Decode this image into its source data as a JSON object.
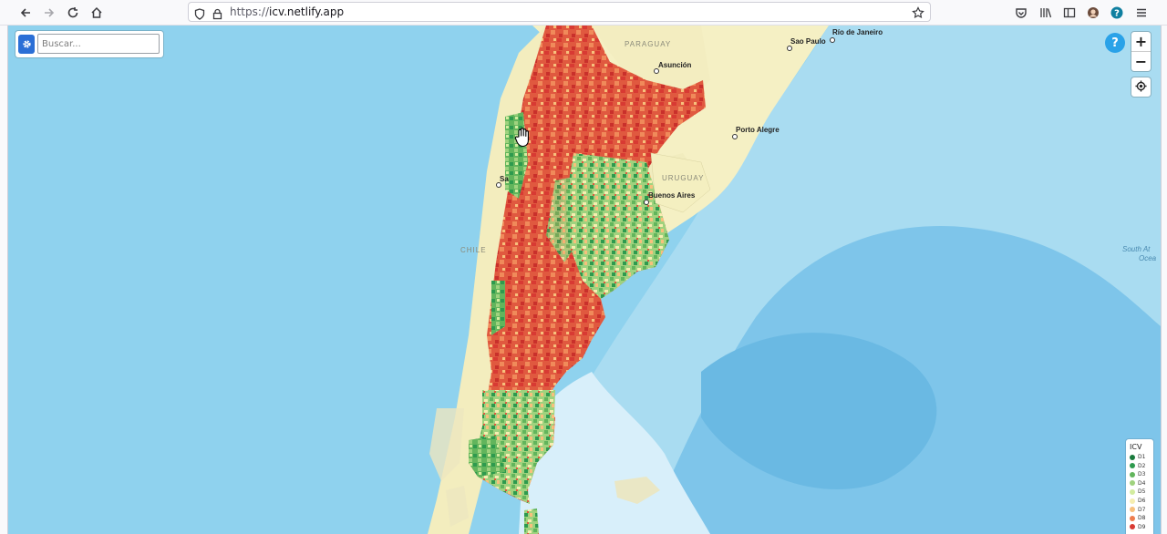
{
  "browser": {
    "url_proto": "https://",
    "url_host": "icv.netlify.app"
  },
  "search": {
    "placeholder": "Buscar..."
  },
  "controls": {
    "zoom_in": "+",
    "zoom_out": "−",
    "help": "?"
  },
  "map": {
    "countries": [
      "PARAGUAY",
      "URUGUAY",
      "CHILE"
    ],
    "cities": [
      "Río de Janeiro",
      "Sao Paulo",
      "Asunción",
      "Porto Alegre",
      "Buenos Aires",
      "Sa"
    ],
    "ocean_label_line1": "South At",
    "ocean_label_line2": "Ocea"
  },
  "legend": {
    "title": "ICV",
    "items": [
      {
        "label": "D1",
        "color": "#1a7a3c"
      },
      {
        "label": "D2",
        "color": "#2e9a4e"
      },
      {
        "label": "D3",
        "color": "#62b55c"
      },
      {
        "label": "D4",
        "color": "#9fd27e"
      },
      {
        "label": "D5",
        "color": "#d3ec9f"
      },
      {
        "label": "D6",
        "color": "#f6eeb0"
      },
      {
        "label": "D7",
        "color": "#f7c07c"
      },
      {
        "label": "D8",
        "color": "#ee7d4e"
      },
      {
        "label": "D9",
        "color": "#d83a33"
      }
    ]
  }
}
